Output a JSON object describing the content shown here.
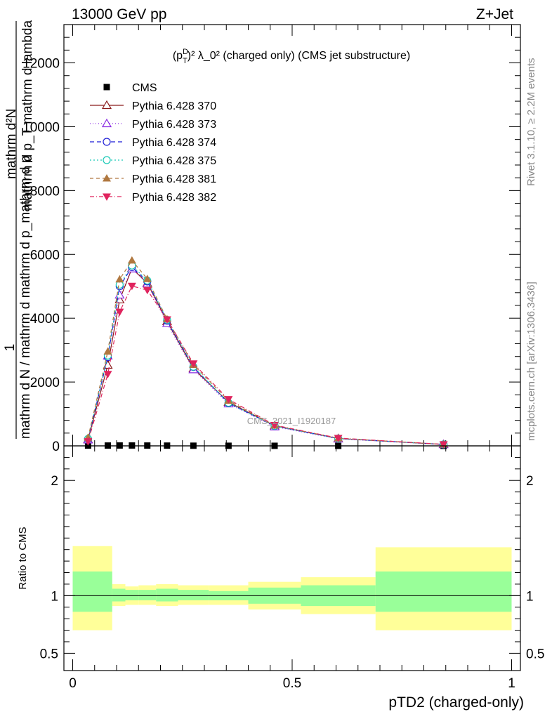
{
  "header": {
    "left": "13000 GeV pp",
    "right": "Z+Jet"
  },
  "side_labels": {
    "rivet": "Rivet 3.1.10, ≥ 2.2M events",
    "mcplots": "mcplots.cern.ch [arXiv:1306.3436]"
  },
  "watermark": "CMS_2021_I1920187",
  "chart_data": [
    {
      "type": "line",
      "title_parts": {
        "p": "(p",
        "sup": "D",
        "sub": "T",
        "rest": ")² λ_0² (charged only) (CMS jet substructure)"
      },
      "ylabel_parts": {
        "one": "1",
        "denominator": "mathrm d N / mathrm d mathrm d p_mathrm d p",
        "numerator_top": "mathrm d²N",
        "numerator_bottom": "mathrm d p_T mathrm d lambda"
      },
      "xlim": [
        -0.02,
        1.02
      ],
      "ylim": [
        0,
        13200
      ],
      "yticks": [
        {
          "v": 0,
          "label": "0"
        },
        {
          "v": 2000,
          "label": "2000"
        },
        {
          "v": 4000,
          "label": "4000"
        },
        {
          "v": 6000,
          "label": "6000"
        },
        {
          "v": 8000,
          "label": "8000"
        },
        {
          "v": 10000,
          "label": "10000"
        },
        {
          "v": 12000,
          "label": "12000"
        }
      ],
      "x": [
        0.035,
        0.08,
        0.107,
        0.135,
        0.17,
        0.215,
        0.275,
        0.355,
        0.46,
        0.605,
        0.845
      ],
      "series": [
        {
          "name": "CMS",
          "marker": "square",
          "color": "#000000",
          "dash": "",
          "values": [
            8,
            10,
            12,
            12,
            10,
            8,
            5,
            3,
            2,
            1,
            0.2
          ]
        },
        {
          "name": "Pythia 6.428 370",
          "marker": "tri-up-open",
          "color": "#8b1a1a",
          "dash": "",
          "values": [
            200,
            2530,
            4580,
            5560,
            5100,
            3900,
            2420,
            1370,
            630,
            230,
            45
          ]
        },
        {
          "name": "Pythia 6.428 373",
          "marker": "tri-up-open",
          "color": "#8a2be2",
          "dash": "1,3",
          "values": [
            190,
            2820,
            4730,
            5550,
            5080,
            3840,
            2390,
            1320,
            600,
            220,
            42
          ]
        },
        {
          "name": "Pythia 6.428 374",
          "marker": "circle-open",
          "color": "#1f1fd6",
          "dash": "6,4",
          "values": [
            210,
            2780,
            5000,
            5600,
            5150,
            3920,
            2470,
            1340,
            620,
            230,
            44
          ]
        },
        {
          "name": "Pythia 6.428 375",
          "marker": "circle-open",
          "color": "#18c9b6",
          "dash": "2,3",
          "values": [
            220,
            2830,
            5050,
            5650,
            5180,
            3950,
            2480,
            1350,
            625,
            232,
            45
          ]
        },
        {
          "name": "Pythia 6.428 381",
          "marker": "tri-up-filled",
          "color": "#b07840",
          "dash": "5,4",
          "values": [
            260,
            2960,
            5220,
            5810,
            5230,
            3970,
            2540,
            1420,
            640,
            240,
            47
          ]
        },
        {
          "name": "Pythia 6.428 382",
          "marker": "tri-down-filled",
          "color": "#e0245e",
          "dash": "6,3,1,3",
          "values": [
            140,
            2250,
            4200,
            5010,
            4880,
            3960,
            2580,
            1460,
            650,
            245,
            48
          ]
        }
      ]
    },
    {
      "type": "area",
      "ylabel": "Ratio to CMS",
      "xlabel": "pTD2 (charged-only)",
      "xlim": [
        -0.02,
        1.02
      ],
      "ylim": [
        0.35,
        2.3
      ],
      "xticks": [
        {
          "v": 0,
          "label": "0"
        },
        {
          "v": 0.5,
          "label": "0.5"
        },
        {
          "v": 1,
          "label": "1"
        }
      ],
      "yticks": [
        {
          "v": 0.5,
          "label": "0.5"
        },
        {
          "v": 1,
          "label": "1"
        },
        {
          "v": 2,
          "label": "2"
        }
      ],
      "reference_line": 1,
      "bands": [
        {
          "x0": 0.0,
          "x1": 0.09,
          "inner": [
            0.86,
            1.21
          ],
          "outer": [
            0.7,
            1.43
          ]
        },
        {
          "x0": 0.09,
          "x1": 0.12,
          "inner": [
            0.95,
            1.06
          ],
          "outer": [
            0.91,
            1.1
          ]
        },
        {
          "x0": 0.12,
          "x1": 0.15,
          "inner": [
            0.96,
            1.05
          ],
          "outer": [
            0.92,
            1.08
          ]
        },
        {
          "x0": 0.15,
          "x1": 0.19,
          "inner": [
            0.96,
            1.05
          ],
          "outer": [
            0.92,
            1.09
          ]
        },
        {
          "x0": 0.19,
          "x1": 0.24,
          "inner": [
            0.95,
            1.06
          ],
          "outer": [
            0.91,
            1.1
          ]
        },
        {
          "x0": 0.24,
          "x1": 0.31,
          "inner": [
            0.96,
            1.05
          ],
          "outer": [
            0.92,
            1.09
          ]
        },
        {
          "x0": 0.31,
          "x1": 0.4,
          "inner": [
            0.96,
            1.04
          ],
          "outer": [
            0.92,
            1.09
          ]
        },
        {
          "x0": 0.4,
          "x1": 0.52,
          "inner": [
            0.93,
            1.07
          ],
          "outer": [
            0.88,
            1.12
          ]
        },
        {
          "x0": 0.52,
          "x1": 0.69,
          "inner": [
            0.91,
            1.09
          ],
          "outer": [
            0.84,
            1.16
          ]
        },
        {
          "x0": 0.69,
          "x1": 1.0,
          "inner": [
            0.86,
            1.21
          ],
          "outer": [
            0.7,
            1.42
          ]
        }
      ],
      "colors": {
        "inner": "#99ff99",
        "outer": "#ffff99"
      }
    }
  ]
}
